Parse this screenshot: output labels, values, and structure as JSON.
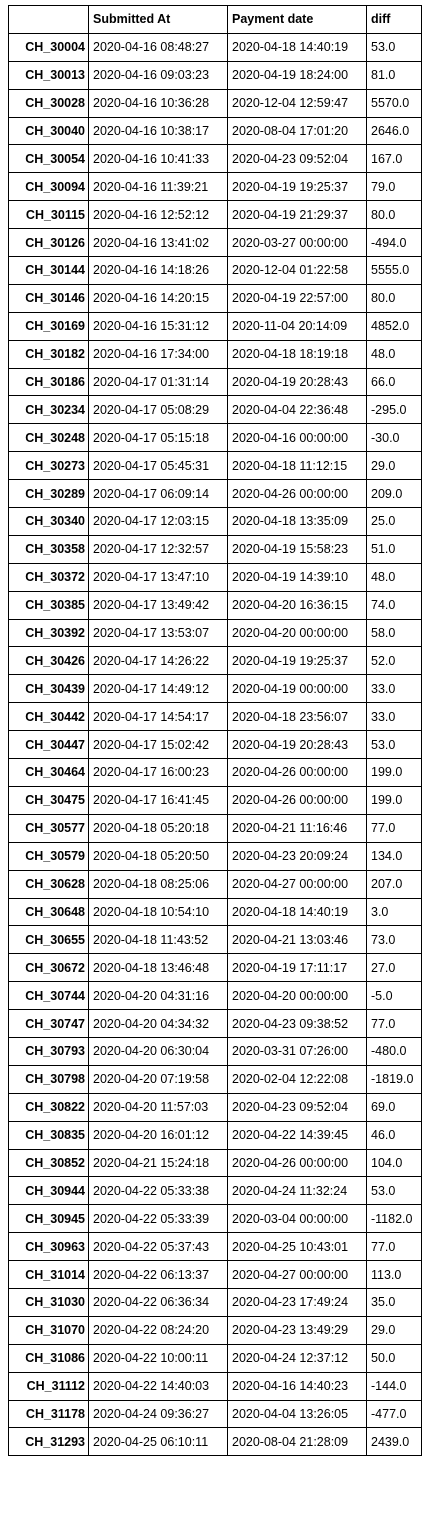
{
  "table": {
    "index_header": "",
    "columns": [
      "Submitted At",
      "Payment date",
      "diff"
    ],
    "rows": [
      [
        "CH_30004",
        "2020-04-16 08:48:27",
        "2020-04-18 14:40:19",
        "53.0"
      ],
      [
        "CH_30013",
        "2020-04-16 09:03:23",
        "2020-04-19 18:24:00",
        "81.0"
      ],
      [
        "CH_30028",
        "2020-04-16 10:36:28",
        "2020-12-04 12:59:47",
        "5570.0"
      ],
      [
        "CH_30040",
        "2020-04-16 10:38:17",
        "2020-08-04 17:01:20",
        "2646.0"
      ],
      [
        "CH_30054",
        "2020-04-16 10:41:33",
        "2020-04-23 09:52:04",
        "167.0"
      ],
      [
        "CH_30094",
        "2020-04-16 11:39:21",
        "2020-04-19 19:25:37",
        "79.0"
      ],
      [
        "CH_30115",
        "2020-04-16 12:52:12",
        "2020-04-19 21:29:37",
        "80.0"
      ],
      [
        "CH_30126",
        "2020-04-16 13:41:02",
        "2020-03-27 00:00:00",
        "-494.0"
      ],
      [
        "CH_30144",
        "2020-04-16 14:18:26",
        "2020-12-04 01:22:58",
        "5555.0"
      ],
      [
        "CH_30146",
        "2020-04-16 14:20:15",
        "2020-04-19 22:57:00",
        "80.0"
      ],
      [
        "CH_30169",
        "2020-04-16 15:31:12",
        "2020-11-04 20:14:09",
        "4852.0"
      ],
      [
        "CH_30182",
        "2020-04-16 17:34:00",
        "2020-04-18 18:19:18",
        "48.0"
      ],
      [
        "CH_30186",
        "2020-04-17 01:31:14",
        "2020-04-19 20:28:43",
        "66.0"
      ],
      [
        "CH_30234",
        "2020-04-17 05:08:29",
        "2020-04-04 22:36:48",
        "-295.0"
      ],
      [
        "CH_30248",
        "2020-04-17 05:15:18",
        "2020-04-16 00:00:00",
        "-30.0"
      ],
      [
        "CH_30273",
        "2020-04-17 05:45:31",
        "2020-04-18 11:12:15",
        "29.0"
      ],
      [
        "CH_30289",
        "2020-04-17 06:09:14",
        "2020-04-26 00:00:00",
        "209.0"
      ],
      [
        "CH_30340",
        "2020-04-17 12:03:15",
        "2020-04-18 13:35:09",
        "25.0"
      ],
      [
        "CH_30358",
        "2020-04-17 12:32:57",
        "2020-04-19 15:58:23",
        "51.0"
      ],
      [
        "CH_30372",
        "2020-04-17 13:47:10",
        "2020-04-19 14:39:10",
        "48.0"
      ],
      [
        "CH_30385",
        "2020-04-17 13:49:42",
        "2020-04-20 16:36:15",
        "74.0"
      ],
      [
        "CH_30392",
        "2020-04-17 13:53:07",
        "2020-04-20 00:00:00",
        "58.0"
      ],
      [
        "CH_30426",
        "2020-04-17 14:26:22",
        "2020-04-19 19:25:37",
        "52.0"
      ],
      [
        "CH_30439",
        "2020-04-17 14:49:12",
        "2020-04-19 00:00:00",
        "33.0"
      ],
      [
        "CH_30442",
        "2020-04-17 14:54:17",
        "2020-04-18 23:56:07",
        "33.0"
      ],
      [
        "CH_30447",
        "2020-04-17 15:02:42",
        "2020-04-19 20:28:43",
        "53.0"
      ],
      [
        "CH_30464",
        "2020-04-17 16:00:23",
        "2020-04-26 00:00:00",
        "199.0"
      ],
      [
        "CH_30475",
        "2020-04-17 16:41:45",
        "2020-04-26 00:00:00",
        "199.0"
      ],
      [
        "CH_30577",
        "2020-04-18 05:20:18",
        "2020-04-21 11:16:46",
        "77.0"
      ],
      [
        "CH_30579",
        "2020-04-18 05:20:50",
        "2020-04-23 20:09:24",
        "134.0"
      ],
      [
        "CH_30628",
        "2020-04-18 08:25:06",
        "2020-04-27 00:00:00",
        "207.0"
      ],
      [
        "CH_30648",
        "2020-04-18 10:54:10",
        "2020-04-18 14:40:19",
        "3.0"
      ],
      [
        "CH_30655",
        "2020-04-18 11:43:52",
        "2020-04-21 13:03:46",
        "73.0"
      ],
      [
        "CH_30672",
        "2020-04-18 13:46:48",
        "2020-04-19 17:11:17",
        "27.0"
      ],
      [
        "CH_30744",
        "2020-04-20 04:31:16",
        "2020-04-20 00:00:00",
        "-5.0"
      ],
      [
        "CH_30747",
        "2020-04-20 04:34:32",
        "2020-04-23 09:38:52",
        "77.0"
      ],
      [
        "CH_30793",
        "2020-04-20 06:30:04",
        "2020-03-31 07:26:00",
        "-480.0"
      ],
      [
        "CH_30798",
        "2020-04-20 07:19:58",
        "2020-02-04 12:22:08",
        "-1819.0"
      ],
      [
        "CH_30822",
        "2020-04-20 11:57:03",
        "2020-04-23 09:52:04",
        "69.0"
      ],
      [
        "CH_30835",
        "2020-04-20 16:01:12",
        "2020-04-22 14:39:45",
        "46.0"
      ],
      [
        "CH_30852",
        "2020-04-21 15:24:18",
        "2020-04-26 00:00:00",
        "104.0"
      ],
      [
        "CH_30944",
        "2020-04-22 05:33:38",
        "2020-04-24 11:32:24",
        "53.0"
      ],
      [
        "CH_30945",
        "2020-04-22 05:33:39",
        "2020-03-04 00:00:00",
        "-1182.0"
      ],
      [
        "CH_30963",
        "2020-04-22 05:37:43",
        "2020-04-25 10:43:01",
        "77.0"
      ],
      [
        "CH_31014",
        "2020-04-22 06:13:37",
        "2020-04-27 00:00:00",
        "113.0"
      ],
      [
        "CH_31030",
        "2020-04-22 06:36:34",
        "2020-04-23 17:49:24",
        "35.0"
      ],
      [
        "CH_31070",
        "2020-04-22 08:24:20",
        "2020-04-23 13:49:29",
        "29.0"
      ],
      [
        "CH_31086",
        "2020-04-22 10:00:11",
        "2020-04-24 12:37:12",
        "50.0"
      ],
      [
        "CH_31112",
        "2020-04-22 14:40:03",
        "2020-04-16 14:40:23",
        "-144.0"
      ],
      [
        "CH_31178",
        "2020-04-24 09:36:27",
        "2020-04-04 13:26:05",
        "-477.0"
      ],
      [
        "CH_31293",
        "2020-04-25 06:10:11",
        "2020-08-04 21:28:09",
        "2439.0"
      ]
    ]
  }
}
